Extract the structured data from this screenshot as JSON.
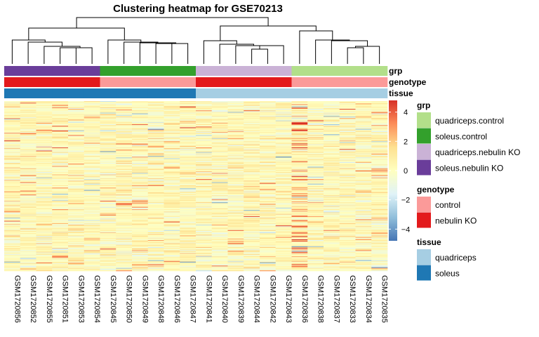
{
  "chart_data": {
    "type": "heatmap",
    "title": "Clustering heatmap for GSE70213",
    "samples": [
      "GSM1720856",
      "GSM1720852",
      "GSM1720855",
      "GSM1720851",
      "GSM1720853",
      "GSM1720854",
      "GSM1720845",
      "GSM1720850",
      "GSM1720849",
      "GSM1720848",
      "GSM1720846",
      "GSM1720847",
      "GSM1720841",
      "GSM1720840",
      "GSM1720839",
      "GSM1720844",
      "GSM1720842",
      "GSM1720843",
      "GSM1720836",
      "GSM1720838",
      "GSM1720837",
      "GSM1720833",
      "GSM1720834",
      "GSM1720835"
    ],
    "annotation_tracks": [
      {
        "name": "grp",
        "values": [
          "soleus.nebulin KO",
          "soleus.nebulin KO",
          "soleus.nebulin KO",
          "soleus.nebulin KO",
          "soleus.nebulin KO",
          "soleus.nebulin KO",
          "soleus.control",
          "soleus.control",
          "soleus.control",
          "soleus.control",
          "soleus.control",
          "soleus.control",
          "quadriceps.nebulin KO",
          "quadriceps.nebulin KO",
          "quadriceps.nebulin KO",
          "quadriceps.nebulin KO",
          "quadriceps.nebulin KO",
          "quadriceps.nebulin KO",
          "quadriceps.control",
          "quadriceps.control",
          "quadriceps.control",
          "quadriceps.control",
          "quadriceps.control",
          "quadriceps.control"
        ]
      },
      {
        "name": "genotype",
        "values": [
          "nebulin KO",
          "nebulin KO",
          "nebulin KO",
          "nebulin KO",
          "nebulin KO",
          "nebulin KO",
          "control",
          "control",
          "control",
          "control",
          "control",
          "control",
          "nebulin KO",
          "nebulin KO",
          "nebulin KO",
          "nebulin KO",
          "nebulin KO",
          "nebulin KO",
          "control",
          "control",
          "control",
          "control",
          "control",
          "control"
        ]
      },
      {
        "name": "tissue",
        "values": [
          "soleus",
          "soleus",
          "soleus",
          "soleus",
          "soleus",
          "soleus",
          "soleus",
          "soleus",
          "soleus",
          "soleus",
          "soleus",
          "soleus",
          "quadriceps",
          "quadriceps",
          "quadriceps",
          "quadriceps",
          "quadriceps",
          "quadriceps",
          "quadriceps",
          "quadriceps",
          "quadriceps",
          "quadriceps",
          "quadriceps",
          "quadriceps"
        ]
      }
    ],
    "legends": [
      {
        "title": "grp",
        "entries": [
          {
            "label": "quadriceps.control",
            "color": "#B2DF8A"
          },
          {
            "label": "soleus.control",
            "color": "#33A02C"
          },
          {
            "label": "quadriceps.nebulin KO",
            "color": "#CAB2D6"
          },
          {
            "label": "soleus.nebulin KO",
            "color": "#6A3D9A"
          }
        ]
      },
      {
        "title": "genotype",
        "entries": [
          {
            "label": "control",
            "color": "#FB9A99"
          },
          {
            "label": "nebulin KO",
            "color": "#E31A1C"
          }
        ]
      },
      {
        "title": "tissue",
        "entries": [
          {
            "label": "quadriceps",
            "color": "#A6CEE3"
          },
          {
            "label": "soleus",
            "color": "#1F78B4"
          }
        ]
      }
    ],
    "color_scale": {
      "ticks": [
        4,
        2,
        0,
        -2,
        -4
      ],
      "min": -4.8,
      "max": 4.8,
      "colors": [
        "#4575B4",
        "#91BFDB",
        "#E0F3F8",
        "#FFFFBF",
        "#FEE090",
        "#FC8D59",
        "#D73027"
      ]
    },
    "legend_placement": "right",
    "dendrogram": "columns"
  }
}
